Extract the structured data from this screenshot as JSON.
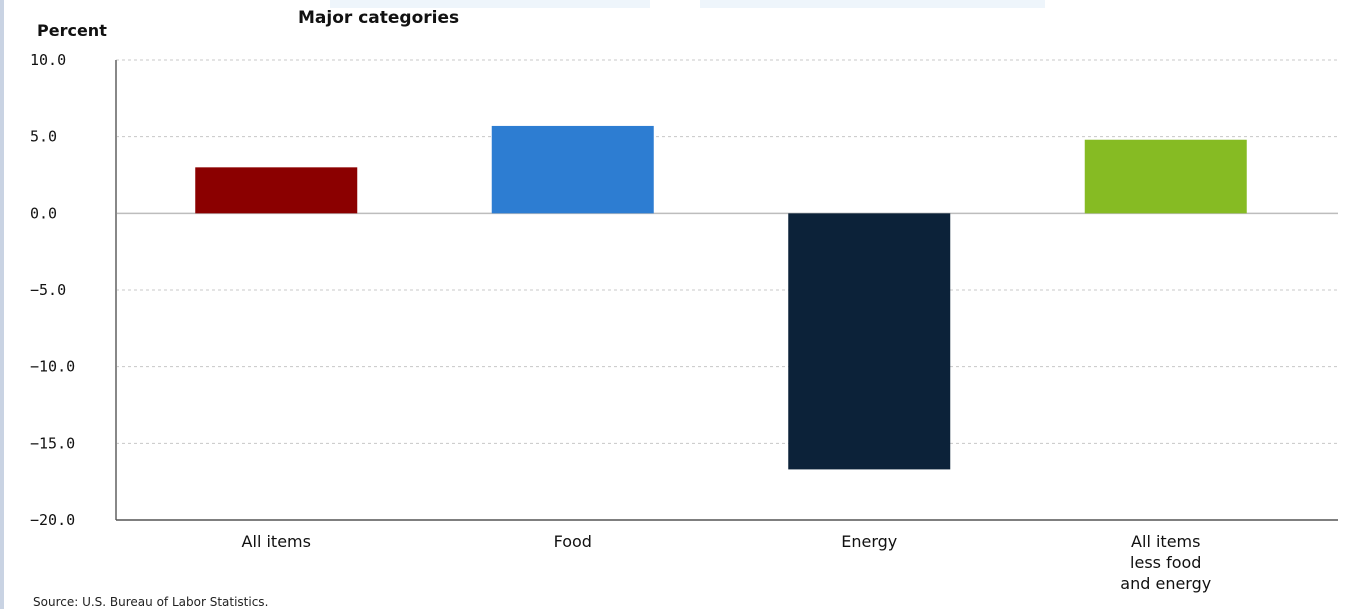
{
  "chart_data": {
    "type": "bar",
    "title": "Major categories",
    "ylabel": "Percent",
    "xlabel": "",
    "categories": [
      "All items",
      "Food",
      "Energy",
      "All items less food and energy"
    ],
    "category_label_lines": [
      [
        "All items"
      ],
      [
        "Food"
      ],
      [
        "Energy"
      ],
      [
        "All items",
        "less food",
        "and energy"
      ]
    ],
    "values": [
      3.0,
      5.7,
      -16.7,
      4.8
    ],
    "colors": [
      "#8b0000",
      "#2d7dd2",
      "#0c2239",
      "#86bb23"
    ],
    "ylim": [
      -20,
      10
    ],
    "yticks": [
      10.0,
      5.0,
      0.0,
      -5.0,
      -10.0,
      -15.0,
      -20.0
    ],
    "ytick_labels": [
      "10.0",
      "5.0",
      "0.0",
      "−5.0",
      "−10.0",
      "−15.0",
      "−20.0"
    ],
    "grid": true,
    "legend": "none"
  },
  "footer": {
    "source": "Source: U.S. Bureau of Labor Statistics."
  }
}
